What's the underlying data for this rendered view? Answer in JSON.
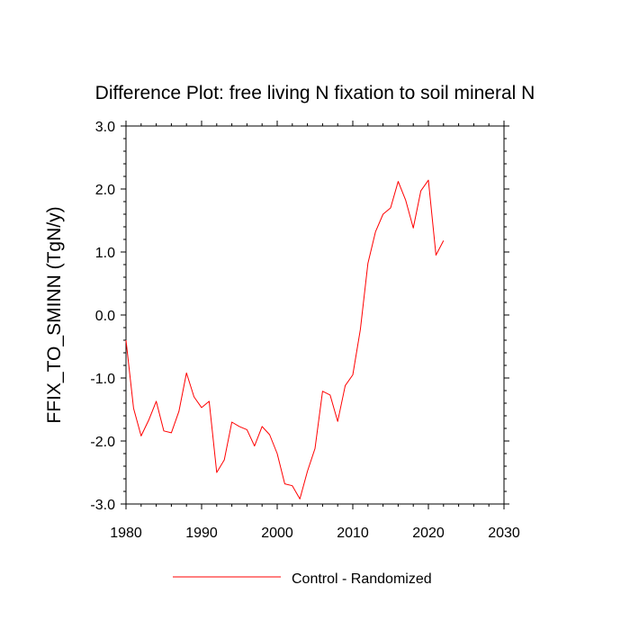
{
  "chart_data": {
    "type": "line",
    "title": "Difference Plot: free living N fixation to soil mineral N",
    "xlabel": "",
    "ylabel": "FFIX_TO_SMINN  (TgN/y)",
    "xlim": [
      1980,
      2030
    ],
    "ylim": [
      -3.0,
      3.0
    ],
    "xticks": [
      1980,
      1990,
      2000,
      2010,
      2020,
      2030
    ],
    "xtick_labels": [
      "1980",
      "1990",
      "2000",
      "2010",
      "2020",
      "2030"
    ],
    "yticks": [
      -3.0,
      -2.0,
      -1.0,
      0.0,
      1.0,
      2.0,
      3.0
    ],
    "ytick_labels": [
      "-3.0",
      "-2.0",
      "-1.0",
      "0.0",
      "1.0",
      "2.0",
      "3.0"
    ],
    "grid": false,
    "legend_position": "bottom-center",
    "series": [
      {
        "name": "Control - Randomized",
        "color": "#ff0000",
        "x": [
          1980,
          1981,
          1982,
          1983,
          1984,
          1985,
          1986,
          1987,
          1988,
          1989,
          1990,
          1991,
          1992,
          1993,
          1994,
          1995,
          1996,
          1997,
          1998,
          1999,
          2000,
          2001,
          2002,
          2003,
          2004,
          2005,
          2006,
          2007,
          2008,
          2009,
          2010,
          2011,
          2012,
          2013,
          2014,
          2015,
          2016,
          2017,
          2018,
          2019,
          2020,
          2021,
          2022
        ],
        "y": [
          -0.4,
          -1.48,
          -1.92,
          -1.67,
          -1.37,
          -1.84,
          -1.87,
          -1.53,
          -0.92,
          -1.3,
          -1.47,
          -1.37,
          -2.5,
          -2.3,
          -1.7,
          -1.77,
          -1.82,
          -2.08,
          -1.77,
          -1.9,
          -2.2,
          -2.68,
          -2.71,
          -2.92,
          -2.48,
          -2.12,
          -1.21,
          -1.27,
          -1.69,
          -1.12,
          -0.95,
          -0.23,
          0.82,
          1.32,
          1.6,
          1.7,
          2.12,
          1.82,
          1.38,
          1.97,
          2.14,
          0.95,
          1.18
        ]
      }
    ]
  }
}
